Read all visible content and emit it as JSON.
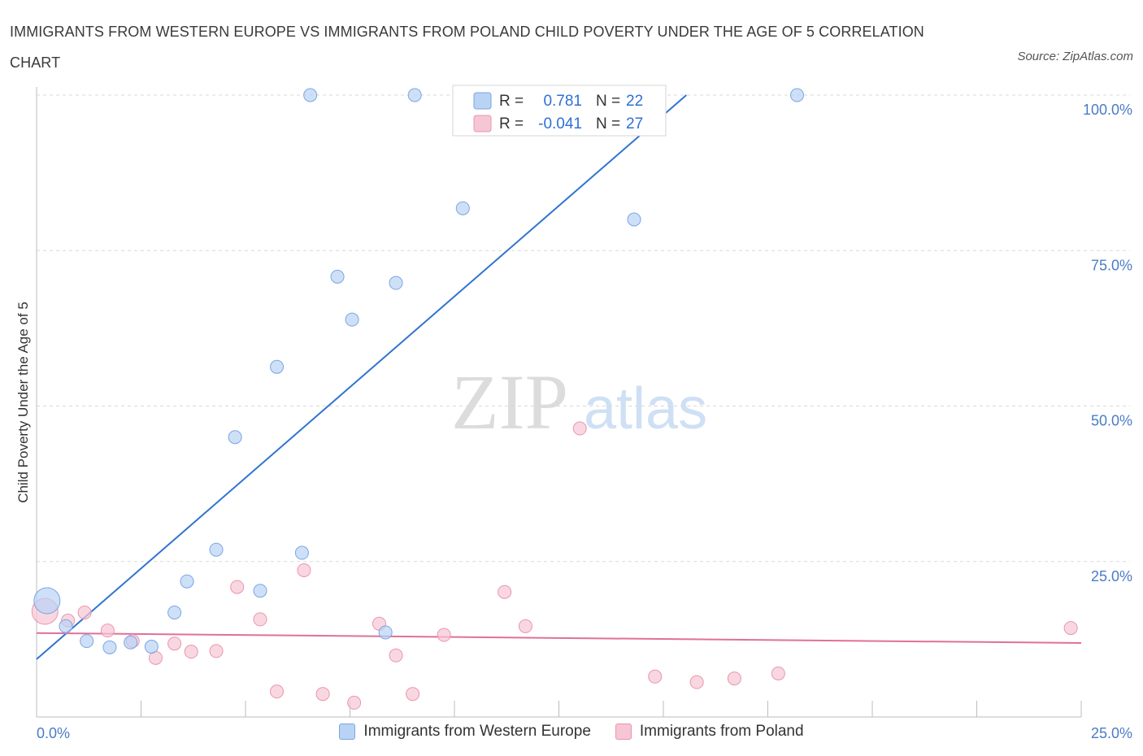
{
  "title": "IMMIGRANTS FROM WESTERN EUROPE VS IMMIGRANTS FROM POLAND CHILD POVERTY UNDER THE AGE OF 5 CORRELATION CHART",
  "source": "Source: ZipAtlas.com",
  "colors": {
    "blue_fill": "#b9d3f5",
    "blue_stroke": "#7aa6e3",
    "blue_line": "#2f74d0",
    "pink_fill": "#f7c6d4",
    "pink_stroke": "#e995b0",
    "pink_line": "#e0709a",
    "tick_text": "#4a7cc7",
    "grid": "#d8d8d8"
  },
  "legend_box": {
    "r_label": "R =",
    "n_label": "N =",
    "series1": {
      "r": "0.781",
      "n": "22"
    },
    "series2": {
      "r": "-0.041",
      "n": "27"
    }
  },
  "watermark": {
    "zip": "ZIP",
    "atlas": "atlas"
  },
  "chart_data": {
    "type": "scatter",
    "title": "IMMIGRANTS FROM WESTERN EUROPE VS IMMIGRANTS FROM POLAND CHILD POVERTY UNDER THE AGE OF 5 CORRELATION CHART",
    "xlabel": "",
    "ylabel": "Child Poverty Under the Age of 5",
    "xlim": [
      0,
      25
    ],
    "ylim": [
      0,
      100
    ],
    "x_tick_labels": [
      "0.0%",
      "25.0%"
    ],
    "y_tick_labels": [
      "100.0%",
      "75.0%",
      "50.0%",
      "25.0%"
    ],
    "y_ticks": [
      100,
      75,
      50,
      25
    ],
    "series": [
      {
        "name": "Immigrants from Western Europe",
        "color": "blue",
        "r": 0.781,
        "n": 22,
        "trend": {
          "x": [
            0,
            15.55
          ],
          "y": [
            9.3,
            100
          ]
        },
        "points": [
          {
            "x": 0.25,
            "y": 18.7,
            "big": true
          },
          {
            "x": 0.7,
            "y": 14.6
          },
          {
            "x": 1.2,
            "y": 12.2
          },
          {
            "x": 1.75,
            "y": 11.2
          },
          {
            "x": 2.25,
            "y": 12.0
          },
          {
            "x": 2.75,
            "y": 11.3
          },
          {
            "x": 3.3,
            "y": 16.8
          },
          {
            "x": 3.6,
            "y": 21.8
          },
          {
            "x": 4.3,
            "y": 26.9
          },
          {
            "x": 4.75,
            "y": 45.0
          },
          {
            "x": 5.35,
            "y": 20.3
          },
          {
            "x": 5.75,
            "y": 56.3
          },
          {
            "x": 6.35,
            "y": 26.4
          },
          {
            "x": 6.55,
            "y": 100
          },
          {
            "x": 7.2,
            "y": 70.8
          },
          {
            "x": 7.55,
            "y": 63.9
          },
          {
            "x": 8.35,
            "y": 13.6
          },
          {
            "x": 8.6,
            "y": 69.8
          },
          {
            "x": 9.05,
            "y": 100
          },
          {
            "x": 10.2,
            "y": 81.8
          },
          {
            "x": 14.3,
            "y": 80.0
          },
          {
            "x": 18.2,
            "y": 100
          }
        ]
      },
      {
        "name": "Immigrants from Poland",
        "color": "pink",
        "r": -0.041,
        "n": 27,
        "trend": {
          "x": [
            0,
            25
          ],
          "y": [
            13.5,
            11.9
          ]
        },
        "points": [
          {
            "x": 0.2,
            "y": 17.0,
            "big": true
          },
          {
            "x": 0.75,
            "y": 15.5
          },
          {
            "x": 1.15,
            "y": 16.8
          },
          {
            "x": 1.7,
            "y": 13.9
          },
          {
            "x": 2.3,
            "y": 12.2
          },
          {
            "x": 2.85,
            "y": 9.5
          },
          {
            "x": 3.3,
            "y": 11.8
          },
          {
            "x": 3.7,
            "y": 10.5
          },
          {
            "x": 4.3,
            "y": 10.6
          },
          {
            "x": 4.8,
            "y": 20.9
          },
          {
            "x": 5.35,
            "y": 15.7
          },
          {
            "x": 5.75,
            "y": 4.1
          },
          {
            "x": 6.4,
            "y": 23.6
          },
          {
            "x": 6.85,
            "y": 3.7
          },
          {
            "x": 7.6,
            "y": 2.3
          },
          {
            "x": 8.2,
            "y": 15.0
          },
          {
            "x": 8.6,
            "y": 9.9
          },
          {
            "x": 9.0,
            "y": 3.7
          },
          {
            "x": 9.75,
            "y": 13.2
          },
          {
            "x": 11.2,
            "y": 20.1
          },
          {
            "x": 11.7,
            "y": 14.6
          },
          {
            "x": 13.0,
            "y": 46.4
          },
          {
            "x": 14.8,
            "y": 6.5
          },
          {
            "x": 15.8,
            "y": 5.6
          },
          {
            "x": 16.7,
            "y": 6.2
          },
          {
            "x": 17.75,
            "y": 7.0
          },
          {
            "x": 24.75,
            "y": 14.3
          }
        ]
      }
    ]
  }
}
